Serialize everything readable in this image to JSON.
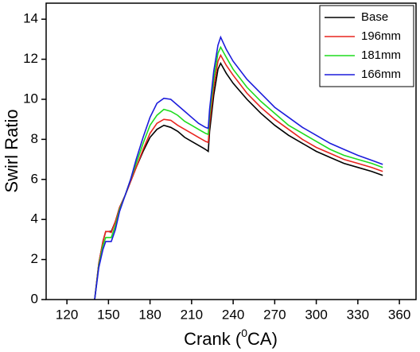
{
  "chart_data": {
    "type": "line",
    "x_label": "Crank (0CA)",
    "x_label_parts": [
      "Crank (",
      "0",
      "CA)"
    ],
    "y_label": "Swirl Ratio",
    "x": [
      140,
      143,
      146,
      148,
      150,
      152,
      155,
      158,
      162,
      166,
      170,
      175,
      180,
      185,
      190,
      195,
      200,
      205,
      210,
      215,
      220,
      222,
      223,
      226,
      229,
      231,
      235,
      240,
      250,
      260,
      270,
      280,
      290,
      300,
      310,
      320,
      330,
      340,
      348
    ],
    "series": [
      {
        "name": "Base",
        "color": "#000000",
        "values": [
          0,
          1.8,
          2.9,
          3.4,
          3.4,
          3.4,
          3.9,
          4.6,
          5.2,
          5.9,
          6.6,
          7.4,
          8.1,
          8.5,
          8.7,
          8.6,
          8.4,
          8.1,
          7.9,
          7.7,
          7.5,
          7.4,
          8.4,
          10.2,
          11.5,
          11.8,
          11.3,
          10.8,
          10.0,
          9.3,
          8.7,
          8.2,
          7.8,
          7.4,
          7.1,
          6.8,
          6.6,
          6.4,
          6.2
        ]
      },
      {
        "name": "196mm",
        "color": "#e8251f",
        "values": [
          0,
          1.8,
          2.9,
          3.4,
          3.4,
          3.35,
          3.9,
          4.6,
          5.2,
          5.9,
          6.6,
          7.5,
          8.3,
          8.8,
          9.0,
          8.95,
          8.7,
          8.5,
          8.3,
          8.1,
          7.9,
          7.85,
          8.8,
          10.6,
          11.9,
          12.2,
          11.7,
          11.2,
          10.3,
          9.6,
          9.0,
          8.5,
          8.0,
          7.6,
          7.3,
          7.0,
          6.8,
          6.6,
          6.4
        ]
      },
      {
        "name": "181mm",
        "color": "#1edc1e",
        "values": [
          0,
          1.7,
          2.7,
          3.1,
          3.1,
          3.1,
          3.7,
          4.5,
          5.2,
          6.0,
          6.8,
          7.8,
          8.7,
          9.2,
          9.5,
          9.4,
          9.2,
          8.9,
          8.7,
          8.5,
          8.3,
          8.25,
          9.2,
          11.0,
          12.3,
          12.6,
          12.1,
          11.5,
          10.6,
          9.9,
          9.3,
          8.7,
          8.3,
          7.9,
          7.5,
          7.2,
          7.0,
          6.8,
          6.6
        ]
      },
      {
        "name": "166mm",
        "color": "#1c1cdc",
        "values": [
          0,
          1.6,
          2.5,
          2.9,
          2.9,
          2.9,
          3.5,
          4.4,
          5.2,
          6.0,
          7.0,
          8.1,
          9.1,
          9.8,
          10.05,
          10.0,
          9.7,
          9.4,
          9.1,
          8.8,
          8.6,
          8.55,
          9.5,
          11.4,
          12.7,
          13.1,
          12.5,
          11.9,
          11.0,
          10.3,
          9.6,
          9.1,
          8.6,
          8.2,
          7.8,
          7.5,
          7.2,
          6.95,
          6.75
        ]
      }
    ],
    "xlim": [
      105,
      372
    ],
    "xticks": [
      120,
      150,
      180,
      210,
      240,
      270,
      300,
      330,
      360
    ],
    "ylim": [
      0,
      14.8
    ],
    "yticks": [
      0,
      2,
      4,
      6,
      8,
      10,
      12,
      14
    ],
    "legend": "top-right"
  }
}
